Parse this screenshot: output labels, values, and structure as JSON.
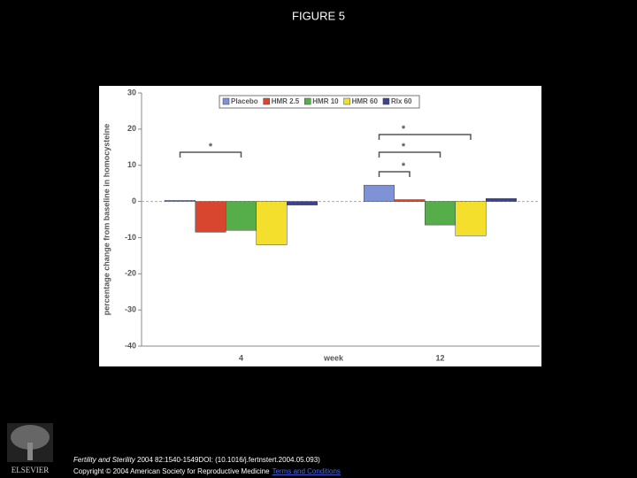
{
  "figure_title": "FIGURE 5",
  "chart_data": {
    "type": "bar",
    "y_label": "percentage change from baseline in homocysteine",
    "x_label": "week",
    "categories": [
      "4",
      "12"
    ],
    "series": [
      {
        "name": "Placebo",
        "color": "#7f92d6",
        "values": [
          0.3,
          4.5
        ]
      },
      {
        "name": "HMR 2.5",
        "color": "#d8462f",
        "values": [
          -8.5,
          0.5
        ]
      },
      {
        "name": "HMR 10",
        "color": "#55ae4a",
        "values": [
          -8,
          -6.5
        ]
      },
      {
        "name": "HMR 60",
        "color": "#f4e02c",
        "values": [
          -12,
          -9.5
        ]
      },
      {
        "name": "Rlx 60",
        "color": "#3c4190",
        "values": [
          -1,
          0.8
        ]
      }
    ],
    "ylim": [
      -40,
      30
    ],
    "yticks": [
      -40,
      -30,
      -20,
      -10,
      0,
      10,
      20,
      30
    ],
    "annotations": [
      "*",
      "*",
      "*",
      "*"
    ]
  },
  "publisher": "ELSEVIER",
  "citation": {
    "journal": "Fertility and Sterility",
    "details": " 2004 82:1540-1549DOI: (10.1016/j.fertnstert.2004.05.093)",
    "copyright": "Copyright © 2004 American Society for Reproductive Medicine",
    "link": "Terms and Conditions"
  }
}
